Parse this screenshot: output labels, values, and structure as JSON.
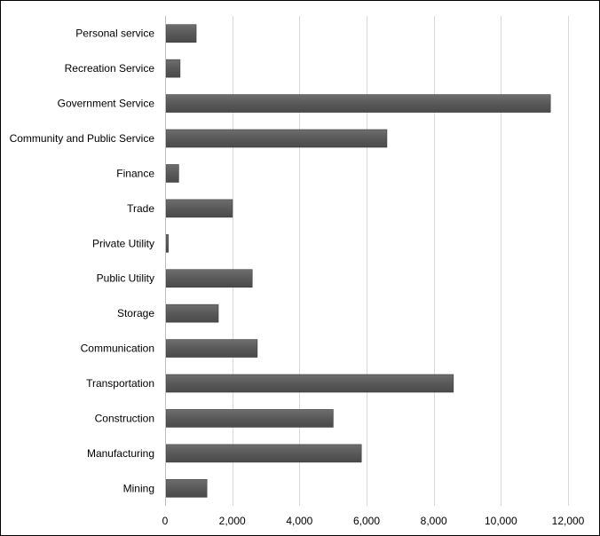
{
  "chart_data": {
    "type": "bar",
    "orientation": "horizontal",
    "title": "",
    "xlabel": "",
    "ylabel": "",
    "categories": [
      "Personal service",
      "Recreation Service",
      "Government Service",
      "Community and Public Service",
      "Finance",
      "Trade",
      "Private Utility",
      "Public Utility",
      "Storage",
      "Communication",
      "Transportation",
      "Construction",
      "Manufacturing",
      "Mining"
    ],
    "values": [
      900,
      420,
      11450,
      6580,
      380,
      1980,
      70,
      2570,
      1560,
      2720,
      8560,
      4980,
      5820,
      1220
    ],
    "xlim": [
      0,
      12000
    ],
    "xticks": [
      0,
      2000,
      4000,
      6000,
      8000,
      10000,
      12000
    ],
    "xtick_labels": [
      "0",
      "2,000",
      "4,000",
      "6,000",
      "8,000",
      "10,000",
      "12,000"
    ],
    "grid": "vertical",
    "legend": "none",
    "bar_color": "#595959",
    "grid_color": "#d9d9d9",
    "axis_color": "#bfbfbf"
  }
}
